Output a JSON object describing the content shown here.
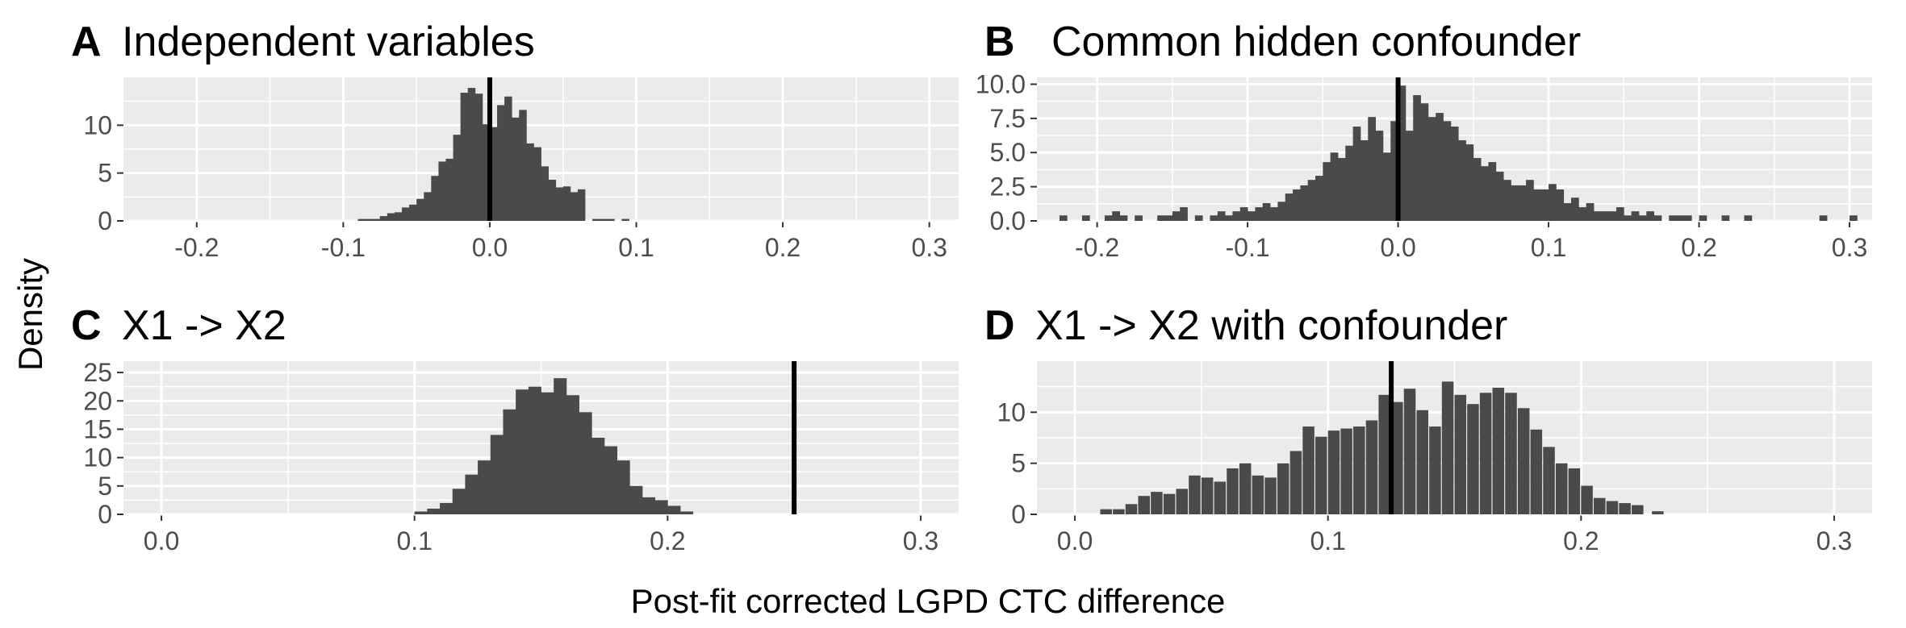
{
  "figure": {
    "xlabel": "Post-fit corrected LGPD CTC difference",
    "ylabel": "Density"
  },
  "colors": {
    "panel_bg": "#ebebeb",
    "grid": "#ffffff",
    "bar": "#4a4a4a",
    "ref_line": "#000000",
    "tick_text": "#4d4d4d"
  },
  "chart_data": [
    {
      "type": "bar",
      "panel": "A",
      "title": "Independent variables",
      "xlim": [
        -0.25,
        0.32
      ],
      "ylim": [
        0,
        15
      ],
      "xticks": [
        -0.2,
        -0.1,
        0.0,
        0.1,
        0.2,
        0.3
      ],
      "xtick_labels": [
        "-0.2",
        "-0.1",
        "0.0",
        "0.1",
        "0.2",
        "0.3"
      ],
      "yticks": [
        0,
        5,
        10
      ],
      "ytick_labels": [
        "0",
        "5",
        "10"
      ],
      "reference_line_x": 0.0,
      "bin_width": 0.005,
      "bins": [
        [
          -0.09,
          0.2
        ],
        [
          -0.085,
          0.2
        ],
        [
          -0.08,
          0.2
        ],
        [
          -0.075,
          0.5
        ],
        [
          -0.07,
          0.8
        ],
        [
          -0.065,
          0.9
        ],
        [
          -0.06,
          1.4
        ],
        [
          -0.055,
          1.7
        ],
        [
          -0.05,
          2.3
        ],
        [
          -0.045,
          3.0
        ],
        [
          -0.04,
          4.7
        ],
        [
          -0.035,
          6.2
        ],
        [
          -0.03,
          6.5
        ],
        [
          -0.025,
          9.0
        ],
        [
          -0.02,
          13.4
        ],
        [
          -0.015,
          13.9
        ],
        [
          -0.01,
          13.3
        ],
        [
          -0.005,
          10.1
        ],
        [
          0.0,
          9.8
        ],
        [
          0.005,
          12.1
        ],
        [
          0.01,
          13.0
        ],
        [
          0.015,
          10.8
        ],
        [
          0.02,
          11.6
        ],
        [
          0.025,
          8.1
        ],
        [
          0.03,
          7.7
        ],
        [
          0.035,
          5.7
        ],
        [
          0.04,
          4.3
        ],
        [
          0.045,
          3.5
        ],
        [
          0.05,
          3.6
        ],
        [
          0.055,
          3.0
        ],
        [
          0.06,
          3.3
        ],
        [
          0.07,
          0.2
        ],
        [
          0.075,
          0.2
        ],
        [
          0.08,
          0.2
        ],
        [
          0.09,
          0.2
        ]
      ]
    },
    {
      "type": "bar",
      "panel": "B",
      "title": "Common hidden confounder",
      "xlim": [
        -0.24,
        0.315
      ],
      "ylim": [
        0,
        10.5
      ],
      "xticks": [
        -0.2,
        -0.1,
        0.0,
        0.1,
        0.2,
        0.3
      ],
      "xtick_labels": [
        "-0.2",
        "-0.1",
        "0.0",
        "0.1",
        "0.2",
        "0.3"
      ],
      "yticks": [
        0,
        2.5,
        5,
        7.5,
        10
      ],
      "ytick_labels": [
        "0.0",
        "2.5",
        "5.0",
        "7.5",
        "10.0"
      ],
      "reference_line_x": 0.0,
      "bin_width": 0.005,
      "bins": [
        [
          -0.225,
          0.4
        ],
        [
          -0.21,
          0.4
        ],
        [
          -0.195,
          0.4
        ],
        [
          -0.19,
          0.7
        ],
        [
          -0.185,
          0.4
        ],
        [
          -0.175,
          0.4
        ],
        [
          -0.16,
          0.4
        ],
        [
          -0.155,
          0.4
        ],
        [
          -0.15,
          0.7
        ],
        [
          -0.145,
          1.0
        ],
        [
          -0.135,
          0.4
        ],
        [
          -0.125,
          0.4
        ],
        [
          -0.12,
          0.7
        ],
        [
          -0.115,
          0.4
        ],
        [
          -0.11,
          0.7
        ],
        [
          -0.105,
          1.0
        ],
        [
          -0.1,
          0.7
        ],
        [
          -0.095,
          1.0
        ],
        [
          -0.09,
          1.3
        ],
        [
          -0.085,
          1.0
        ],
        [
          -0.08,
          1.4
        ],
        [
          -0.075,
          2.0
        ],
        [
          -0.07,
          2.3
        ],
        [
          -0.065,
          2.6
        ],
        [
          -0.06,
          3.0
        ],
        [
          -0.055,
          3.3
        ],
        [
          -0.05,
          4.3
        ],
        [
          -0.045,
          5.0
        ],
        [
          -0.04,
          4.6
        ],
        [
          -0.035,
          5.5
        ],
        [
          -0.03,
          6.9
        ],
        [
          -0.025,
          5.9
        ],
        [
          -0.02,
          7.6
        ],
        [
          -0.015,
          6.6
        ],
        [
          -0.01,
          5.0
        ],
        [
          -0.005,
          7.3
        ],
        [
          0.0,
          9.9
        ],
        [
          0.005,
          6.6
        ],
        [
          0.01,
          9.2
        ],
        [
          0.015,
          8.6
        ],
        [
          0.02,
          7.6
        ],
        [
          0.025,
          7.9
        ],
        [
          0.03,
          7.3
        ],
        [
          0.035,
          6.9
        ],
        [
          0.04,
          5.9
        ],
        [
          0.045,
          5.6
        ],
        [
          0.05,
          4.6
        ],
        [
          0.055,
          4.0
        ],
        [
          0.06,
          4.3
        ],
        [
          0.065,
          3.6
        ],
        [
          0.07,
          3.0
        ],
        [
          0.075,
          2.6
        ],
        [
          0.08,
          2.6
        ],
        [
          0.085,
          3.0
        ],
        [
          0.09,
          2.3
        ],
        [
          0.095,
          2.3
        ],
        [
          0.1,
          2.7
        ],
        [
          0.105,
          2.3
        ],
        [
          0.11,
          1.3
        ],
        [
          0.115,
          1.7
        ],
        [
          0.12,
          1.0
        ],
        [
          0.125,
          1.3
        ],
        [
          0.13,
          0.7
        ],
        [
          0.135,
          0.7
        ],
        [
          0.14,
          0.7
        ],
        [
          0.145,
          1.0
        ],
        [
          0.15,
          0.4
        ],
        [
          0.155,
          0.7
        ],
        [
          0.16,
          0.4
        ],
        [
          0.165,
          0.7
        ],
        [
          0.17,
          0.4
        ],
        [
          0.18,
          0.4
        ],
        [
          0.185,
          0.4
        ],
        [
          0.19,
          0.4
        ],
        [
          0.2,
          0.4
        ],
        [
          0.215,
          0.4
        ],
        [
          0.23,
          0.4
        ],
        [
          0.28,
          0.4
        ],
        [
          0.3,
          0.4
        ]
      ]
    },
    {
      "type": "bar",
      "panel": "C",
      "title": "X1 -> X2",
      "xlim": [
        -0.015,
        0.315
      ],
      "ylim": [
        0,
        27
      ],
      "xticks": [
        0.0,
        0.1,
        0.2,
        0.3
      ],
      "xtick_labels": [
        "0.0",
        "0.1",
        "0.2",
        "0.3"
      ],
      "yticks": [
        0,
        5,
        10,
        15,
        20,
        25
      ],
      "ytick_labels": [
        "0",
        "5",
        "10",
        "15",
        "20",
        "25"
      ],
      "reference_line_x": 0.25,
      "bin_width": 0.005,
      "bins": [
        [
          0.1,
          0.5
        ],
        [
          0.105,
          1.0
        ],
        [
          0.11,
          2.0
        ],
        [
          0.115,
          4.5
        ],
        [
          0.12,
          7.0
        ],
        [
          0.125,
          9.5
        ],
        [
          0.13,
          14.0
        ],
        [
          0.135,
          18.5
        ],
        [
          0.14,
          22.0
        ],
        [
          0.145,
          22.5
        ],
        [
          0.15,
          21.5
        ],
        [
          0.155,
          24.0
        ],
        [
          0.16,
          21.0
        ],
        [
          0.165,
          18.0
        ],
        [
          0.17,
          13.5
        ],
        [
          0.175,
          12.0
        ],
        [
          0.18,
          9.5
        ],
        [
          0.185,
          5.0
        ],
        [
          0.19,
          3.0
        ],
        [
          0.195,
          2.5
        ],
        [
          0.2,
          1.5
        ],
        [
          0.205,
          0.5
        ]
      ]
    },
    {
      "type": "bar",
      "panel": "D",
      "title": "X1 -> X2 with confounder",
      "xlim": [
        -0.015,
        0.315
      ],
      "ylim": [
        0,
        15
      ],
      "xticks": [
        0.0,
        0.1,
        0.2,
        0.3
      ],
      "xtick_labels": [
        "0.0",
        "0.1",
        "0.2",
        "0.3"
      ],
      "yticks": [
        0,
        5,
        10
      ],
      "ytick_labels": [
        "0",
        "5",
        "10"
      ],
      "reference_line_x": 0.125,
      "bin_width": 0.0045,
      "bins": [
        [
          0.01,
          0.5
        ],
        [
          0.015,
          0.5
        ],
        [
          0.02,
          1.0
        ],
        [
          0.025,
          1.8
        ],
        [
          0.03,
          2.2
        ],
        [
          0.035,
          2.0
        ],
        [
          0.04,
          2.5
        ],
        [
          0.045,
          3.8
        ],
        [
          0.05,
          3.6
        ],
        [
          0.055,
          3.2
        ],
        [
          0.06,
          4.5
        ],
        [
          0.065,
          5.0
        ],
        [
          0.07,
          3.8
        ],
        [
          0.075,
          3.6
        ],
        [
          0.08,
          5.0
        ],
        [
          0.085,
          6.2
        ],
        [
          0.09,
          8.6
        ],
        [
          0.095,
          7.6
        ],
        [
          0.1,
          8.2
        ],
        [
          0.105,
          8.4
        ],
        [
          0.11,
          8.6
        ],
        [
          0.115,
          9.2
        ],
        [
          0.12,
          11.7
        ],
        [
          0.125,
          11.0
        ],
        [
          0.13,
          12.3
        ],
        [
          0.135,
          10.2
        ],
        [
          0.14,
          8.6
        ],
        [
          0.145,
          13.0
        ],
        [
          0.15,
          11.7
        ],
        [
          0.155,
          10.8
        ],
        [
          0.16,
          11.9
        ],
        [
          0.165,
          12.4
        ],
        [
          0.17,
          11.9
        ],
        [
          0.175,
          10.4
        ],
        [
          0.18,
          8.3
        ],
        [
          0.185,
          6.6
        ],
        [
          0.19,
          5.0
        ],
        [
          0.195,
          4.5
        ],
        [
          0.2,
          2.8
        ],
        [
          0.205,
          1.6
        ],
        [
          0.21,
          1.3
        ],
        [
          0.215,
          1.1
        ],
        [
          0.22,
          0.9
        ],
        [
          0.228,
          0.3
        ]
      ]
    }
  ]
}
